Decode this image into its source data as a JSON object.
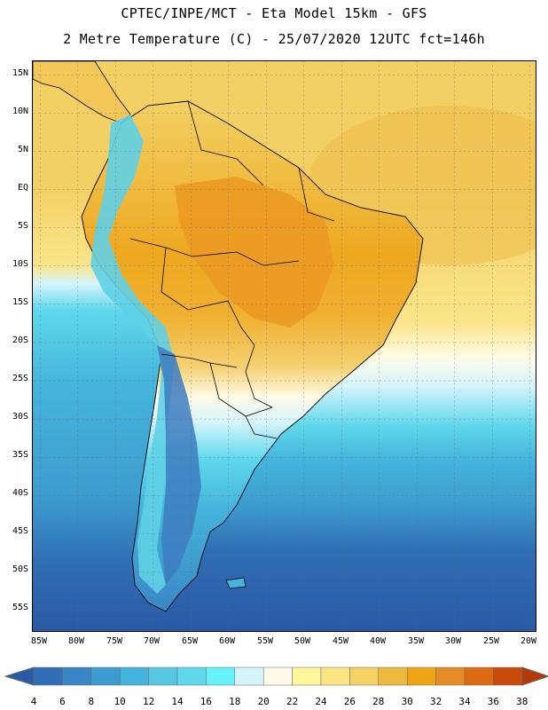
{
  "header": {
    "line1": "CPTEC/INPE/MCT -  Eta Model 15km - GFS",
    "line2": "2 Metre Temperature (C) - 25/07/2020 12UTC fct=146h"
  },
  "map": {
    "lat_labels": [
      "15N",
      "10N",
      "5N",
      "EQ",
      "5S",
      "10S",
      "15S",
      "20S",
      "25S",
      "30S",
      "35S",
      "40S",
      "45S",
      "50S",
      "55S"
    ],
    "lon_labels": [
      "85W",
      "80W",
      "75W",
      "70W",
      "65W",
      "60W",
      "55W",
      "50W",
      "45W",
      "40W",
      "35W",
      "30W",
      "25W",
      "20W"
    ],
    "colors": {
      "ocean_south": "#2f62a8",
      "ocean_mid": "#3a86c4",
      "ocean_cool": "#4ab5dc",
      "ocean_warm": "#f2d068",
      "land_tropics": "#f0a830",
      "land_hot": "#e89422",
      "andes": "#6fd0e8"
    }
  },
  "colorbar": {
    "ticks": [
      "4",
      "6",
      "8",
      "10",
      "12",
      "14",
      "16",
      "18",
      "20",
      "22",
      "24",
      "26",
      "28",
      "30",
      "32",
      "34",
      "36",
      "38"
    ],
    "colors": [
      "#2a5aa6",
      "#2f6db4",
      "#3a86c4",
      "#3d9ccf",
      "#45b4dc",
      "#56c6e2",
      "#5fd8ec",
      "#66f2f8",
      "#d6f4fc",
      "#fffbe8",
      "#fff59a",
      "#fbe582",
      "#f3d164",
      "#ecb93c",
      "#eea513",
      "#e68c26",
      "#dc6a12",
      "#c94a0c",
      "#b23a08"
    ]
  }
}
